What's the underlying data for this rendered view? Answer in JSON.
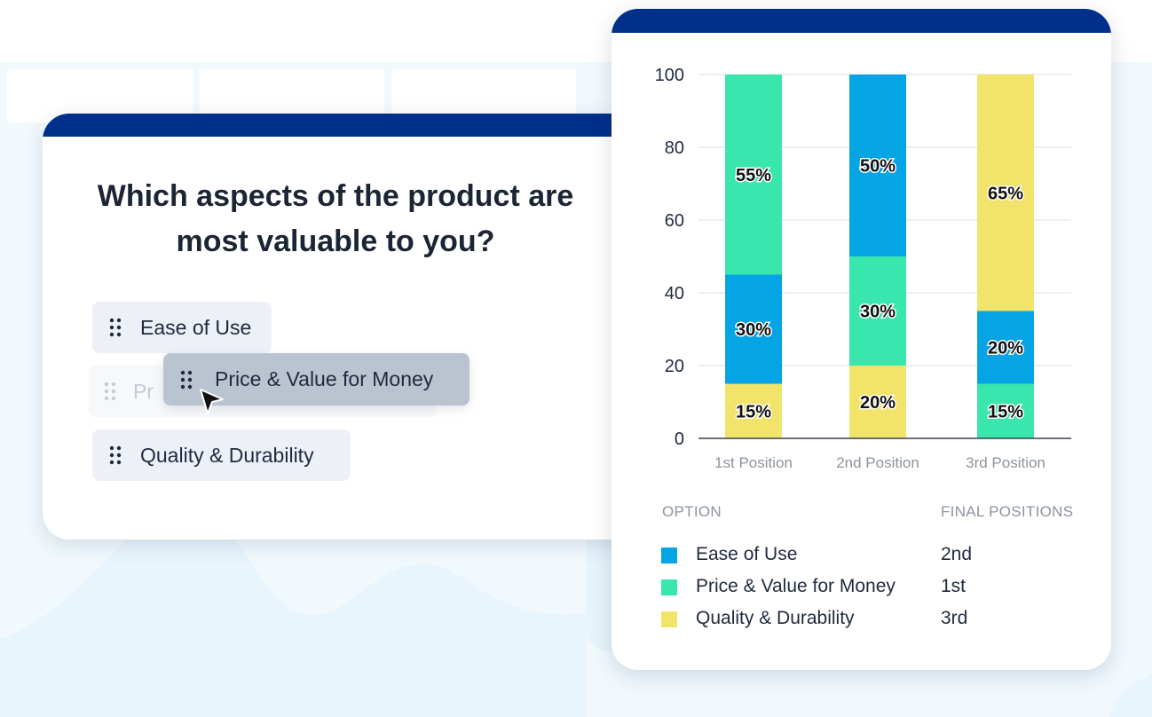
{
  "question": {
    "title": "Which aspects of the product are most valuable to you?",
    "items": [
      {
        "label": "Ease of Use"
      },
      {
        "label": "Price & Value for Money",
        "ghost_fragment": "Pr"
      },
      {
        "label": "Quality & Durability"
      }
    ],
    "dragging_label": "Price & Value for Money"
  },
  "colors": {
    "brand_bar": "#00308a",
    "ease": "#05a4e4",
    "price": "#39e6ad",
    "quality": "#f2e46b"
  },
  "chart_data": {
    "type": "bar",
    "stacked": true,
    "categories": [
      "1st Position",
      "2nd Position",
      "3rd Position"
    ],
    "series": [
      {
        "name": "Quality & Durability",
        "color": "#f2e46b",
        "values": [
          15,
          20,
          65
        ]
      },
      {
        "name": "Ease of Use",
        "color": "#05a4e4",
        "values": [
          30,
          50,
          20
        ]
      },
      {
        "name": "Price & Value for Money",
        "color": "#39e6ad",
        "values": [
          55,
          30,
          15
        ]
      }
    ],
    "stack_order": [
      [
        "Quality & Durability",
        "Ease of Use",
        "Price & Value for Money"
      ],
      [
        "Quality & Durability",
        "Price & Value for Money",
        "Ease of Use"
      ],
      [
        "Price & Value for Money",
        "Ease of Use",
        "Quality & Durability"
      ]
    ],
    "yticks": [
      0,
      20,
      40,
      60,
      80,
      100
    ],
    "ylim": [
      0,
      100
    ],
    "grid": true
  },
  "legend": {
    "option_header": "OPTION",
    "positions_header": "FINAL POSITIONS",
    "rows": [
      {
        "name": "Ease of Use",
        "position": "2nd",
        "color": "#05a4e4"
      },
      {
        "name": "Price & Value for Money",
        "position": "1st",
        "color": "#39e6ad"
      },
      {
        "name": "Quality & Durability",
        "position": "3rd",
        "color": "#f2e46b"
      }
    ]
  }
}
